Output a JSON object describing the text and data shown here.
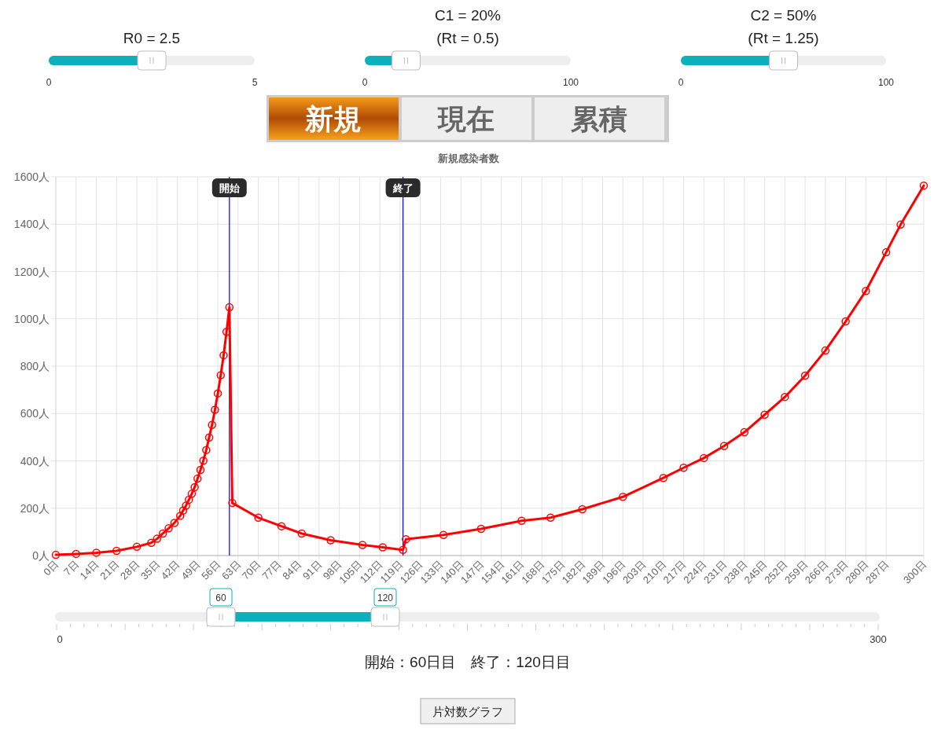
{
  "chart_data": {
    "type": "line",
    "title": "新規感染者数",
    "xlim": [
      0,
      300
    ],
    "ylim": [
      0,
      1600
    ],
    "xticks": [
      {
        "value": 0,
        "label": "0日"
      },
      {
        "value": 7,
        "label": "7日"
      },
      {
        "value": 14,
        "label": "14日"
      },
      {
        "value": 21,
        "label": "21日"
      },
      {
        "value": 28,
        "label": "28日"
      },
      {
        "value": 35,
        "label": "35日"
      },
      {
        "value": 42,
        "label": "42日"
      },
      {
        "value": 49,
        "label": "49日"
      },
      {
        "value": 56,
        "label": "56日"
      },
      {
        "value": 63,
        "label": "63日"
      },
      {
        "value": 70,
        "label": "70日"
      },
      {
        "value": 77,
        "label": "77日"
      },
      {
        "value": 84,
        "label": "84日"
      },
      {
        "value": 91,
        "label": "91日"
      },
      {
        "value": 98,
        "label": "98日"
      },
      {
        "value": 105,
        "label": "105日"
      },
      {
        "value": 112,
        "label": "112日"
      },
      {
        "value": 119,
        "label": "119日"
      },
      {
        "value": 126,
        "label": "126日"
      },
      {
        "value": 133,
        "label": "133日"
      },
      {
        "value": 140,
        "label": "140日"
      },
      {
        "value": 147,
        "label": "147日"
      },
      {
        "value": 154,
        "label": "154日"
      },
      {
        "value": 161,
        "label": "161日"
      },
      {
        "value": 168,
        "label": "168日"
      },
      {
        "value": 175,
        "label": "175日"
      },
      {
        "value": 182,
        "label": "182日"
      },
      {
        "value": 189,
        "label": "189日"
      },
      {
        "value": 196,
        "label": "196日"
      },
      {
        "value": 203,
        "label": "203日"
      },
      {
        "value": 210,
        "label": "210日"
      },
      {
        "value": 217,
        "label": "217日"
      },
      {
        "value": 224,
        "label": "224日"
      },
      {
        "value": 231,
        "label": "231日"
      },
      {
        "value": 238,
        "label": "238日"
      },
      {
        "value": 245,
        "label": "245日"
      },
      {
        "value": 252,
        "label": "252日"
      },
      {
        "value": 259,
        "label": "259日"
      },
      {
        "value": 266,
        "label": "266日"
      },
      {
        "value": 273,
        "label": "273日"
      },
      {
        "value": 280,
        "label": "280日"
      },
      {
        "value": 287,
        "label": "287日"
      },
      {
        "value": 300,
        "label": "300日"
      }
    ],
    "yticks": [
      {
        "value": 0,
        "label": "0人"
      },
      {
        "value": 200,
        "label": "200人"
      },
      {
        "value": 400,
        "label": "400人"
      },
      {
        "value": 600,
        "label": "600人"
      },
      {
        "value": 800,
        "label": "800人"
      },
      {
        "value": 1000,
        "label": "1000人"
      },
      {
        "value": 1200,
        "label": "1200人"
      },
      {
        "value": 1400,
        "label": "1400人"
      },
      {
        "value": 1600,
        "label": "1600人"
      }
    ],
    "grid": true,
    "marker": "circle",
    "line_style": "solid",
    "series": [
      {
        "color": "#ff0000",
        "x": [
          0,
          7,
          14,
          21,
          28,
          33,
          35,
          37,
          39,
          41,
          43,
          44,
          45,
          46,
          47,
          48,
          49,
          50,
          51,
          52,
          53,
          54,
          55,
          56,
          57,
          58,
          59,
          60,
          61,
          70,
          78,
          85,
          95,
          106,
          113,
          120,
          121,
          134,
          147,
          161,
          171,
          182,
          196,
          210,
          217,
          224,
          231,
          238,
          245,
          252,
          259,
          266,
          273,
          280,
          287,
          292,
          300
        ],
        "values": [
          3,
          7,
          12,
          20,
          37,
          54,
          71,
          93,
          115,
          138,
          168,
          190,
          211,
          236,
          261,
          289,
          325,
          362,
          401,
          446,
          499,
          552,
          616,
          685,
          762,
          846,
          945,
          1049,
          222,
          160,
          124,
          93,
          65,
          45,
          35,
          24,
          69,
          87,
          113,
          147,
          160,
          196,
          248,
          328,
          371,
          412,
          463,
          521,
          595,
          670,
          760,
          866,
          989,
          1118,
          1281,
          1398,
          1563
        ]
      }
    ],
    "ref_lines": [
      {
        "axis": "x",
        "value": 60,
        "label": "開始",
        "color": "#0000ff"
      },
      {
        "axis": "x",
        "value": 120,
        "label": "終了",
        "color": "#0000ff"
      }
    ],
    "annotations": [
      "R0 = 2.5",
      "0",
      "5",
      "C1 = 20%",
      "(Rt = 0.5)",
      "0",
      "100",
      "C2 = 50%",
      "(Rt = 1.25)",
      "0",
      "100",
      "新規",
      "現在",
      "累積",
      "60",
      "120",
      "0",
      "300",
      "開始：60日目　終了：120日目",
      "片対数グラフ"
    ]
  }
}
